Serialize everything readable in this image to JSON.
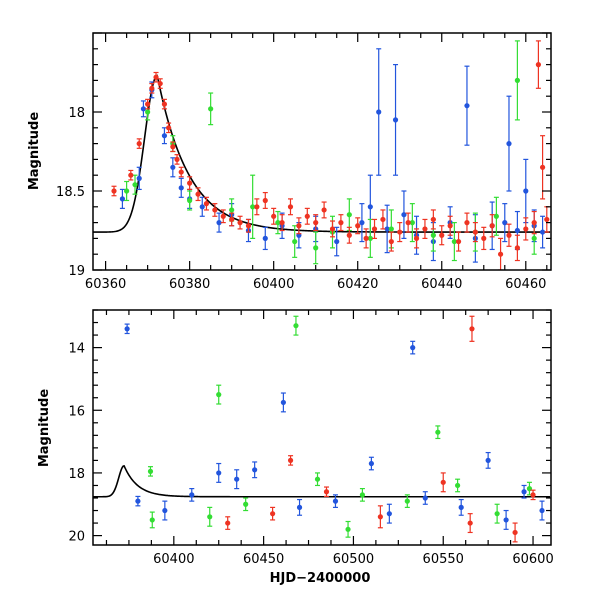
{
  "chart_data": [
    {
      "id": "top",
      "type": "scatter",
      "title": "",
      "xlabel": "",
      "ylabel": "Magnitude",
      "xlim": [
        60357,
        60466
      ],
      "ylim": [
        19.0,
        17.5
      ],
      "y_inverted": true,
      "grid": false,
      "legend": "none",
      "x_ticks": [
        60360,
        60380,
        60400,
        60420,
        60440,
        60460
      ],
      "x_tick_labels": [
        "60360",
        "60380",
        "60400",
        "60420",
        "60440",
        "60460"
      ],
      "y_ticks": [
        18,
        18.5,
        19
      ],
      "y_tick_labels": [
        "18",
        "18.5",
        "19"
      ],
      "model_curve": {
        "color": "#000000",
        "peak_x": 60372.3,
        "peak_mag": 17.77,
        "baseline_mag": 18.76,
        "rise_sigma_days": 3.0,
        "decay_tau_days": 7.5
      },
      "series": [
        {
          "color": "#2255dd",
          "points": [
            [
              60364,
              18.55,
              0.06
            ],
            [
              60368,
              18.42,
              0.07
            ],
            [
              60369,
              17.98,
              0.05
            ],
            [
              60371,
              17.86,
              0.05
            ],
            [
              60374,
              18.15,
              0.05
            ],
            [
              60376,
              18.35,
              0.06
            ],
            [
              60378,
              18.48,
              0.06
            ],
            [
              60380,
              18.55,
              0.06
            ],
            [
              60383,
              18.6,
              0.06
            ],
            [
              60387,
              18.7,
              0.06
            ],
            [
              60390,
              18.65,
              0.07
            ],
            [
              60394,
              18.75,
              0.07
            ],
            [
              60398,
              18.8,
              0.07
            ],
            [
              60402,
              18.72,
              0.08
            ],
            [
              60406,
              18.78,
              0.08
            ],
            [
              60410,
              18.74,
              0.08
            ],
            [
              60415,
              18.82,
              0.09
            ],
            [
              60421,
              18.7,
              0.12
            ],
            [
              60423,
              18.6,
              0.2
            ],
            [
              60425,
              18.0,
              0.4
            ],
            [
              60427,
              18.74,
              0.15
            ],
            [
              60429,
              18.05,
              0.35
            ],
            [
              60431,
              18.65,
              0.15
            ],
            [
              60434,
              18.78,
              0.12
            ],
            [
              60438,
              18.82,
              0.12
            ],
            [
              60442,
              18.7,
              0.1
            ],
            [
              60446,
              17.96,
              0.25
            ],
            [
              60448,
              18.8,
              0.15
            ],
            [
              60452,
              18.72,
              0.15
            ],
            [
              60455,
              18.7,
              0.12
            ],
            [
              60456,
              18.2,
              0.3
            ],
            [
              60458,
              18.75,
              0.12
            ],
            [
              60460,
              18.5,
              0.2
            ],
            [
              60462,
              18.72,
              0.1
            ],
            [
              60464,
              18.76,
              0.1
            ]
          ]
        },
        {
          "color": "#33dd33",
          "points": [
            [
              60365,
              18.5,
              0.06
            ],
            [
              60367,
              18.46,
              0.06
            ],
            [
              60370,
              18.0,
              0.05
            ],
            [
              60376,
              18.2,
              0.05
            ],
            [
              60380,
              18.56,
              0.06
            ],
            [
              60385,
              17.98,
              0.1
            ],
            [
              60390,
              18.62,
              0.07
            ],
            [
              60395,
              18.6,
              0.2
            ],
            [
              60401,
              18.7,
              0.07
            ],
            [
              60405,
              18.82,
              0.1
            ],
            [
              60410,
              18.86,
              0.1
            ],
            [
              60414,
              18.76,
              0.1
            ],
            [
              60418,
              18.65,
              0.1
            ],
            [
              60423,
              18.8,
              0.12
            ],
            [
              60428,
              18.74,
              0.12
            ],
            [
              60433,
              18.7,
              0.12
            ],
            [
              60438,
              18.78,
              0.1
            ],
            [
              60443,
              18.82,
              0.12
            ],
            [
              60448,
              18.76,
              0.12
            ],
            [
              60453,
              18.66,
              0.12
            ],
            [
              60458,
              17.8,
              0.25
            ],
            [
              60462,
              18.8,
              0.1
            ]
          ]
        },
        {
          "color": "#ee3322",
          "points": [
            [
              60362,
              18.5,
              0.03
            ],
            [
              60366,
              18.4,
              0.03
            ],
            [
              60368,
              18.2,
              0.03
            ],
            [
              60370,
              17.95,
              0.03
            ],
            [
              60371,
              17.85,
              0.03
            ],
            [
              60372,
              17.78,
              0.03
            ],
            [
              60373,
              17.82,
              0.03
            ],
            [
              60374,
              17.95,
              0.03
            ],
            [
              60375,
              18.1,
              0.03
            ],
            [
              60376,
              18.22,
              0.03
            ],
            [
              60377,
              18.3,
              0.03
            ],
            [
              60378,
              18.38,
              0.03
            ],
            [
              60380,
              18.45,
              0.04
            ],
            [
              60382,
              18.52,
              0.04
            ],
            [
              60384,
              18.58,
              0.04
            ],
            [
              60386,
              18.62,
              0.04
            ],
            [
              60388,
              18.66,
              0.04
            ],
            [
              60390,
              18.68,
              0.04
            ],
            [
              60392,
              18.7,
              0.04
            ],
            [
              60394,
              18.72,
              0.04
            ],
            [
              60396,
              18.6,
              0.05
            ],
            [
              60398,
              18.56,
              0.05
            ],
            [
              60400,
              18.66,
              0.05
            ],
            [
              60402,
              18.7,
              0.05
            ],
            [
              60404,
              18.6,
              0.05
            ],
            [
              60406,
              18.72,
              0.05
            ],
            [
              60408,
              18.66,
              0.05
            ],
            [
              60410,
              18.7,
              0.05
            ],
            [
              60412,
              18.62,
              0.05
            ],
            [
              60414,
              18.74,
              0.05
            ],
            [
              60416,
              18.7,
              0.05
            ],
            [
              60418,
              18.78,
              0.05
            ],
            [
              60420,
              18.72,
              0.05
            ],
            [
              60422,
              18.8,
              0.06
            ],
            [
              60424,
              18.74,
              0.06
            ],
            [
              60426,
              18.68,
              0.06
            ],
            [
              60428,
              18.82,
              0.06
            ],
            [
              60430,
              18.76,
              0.06
            ],
            [
              60432,
              18.7,
              0.06
            ],
            [
              60434,
              18.8,
              0.06
            ],
            [
              60436,
              18.74,
              0.06
            ],
            [
              60438,
              18.68,
              0.06
            ],
            [
              60440,
              18.78,
              0.06
            ],
            [
              60442,
              18.72,
              0.06
            ],
            [
              60444,
              18.82,
              0.06
            ],
            [
              60446,
              18.7,
              0.06
            ],
            [
              60448,
              18.76,
              0.06
            ],
            [
              60450,
              18.8,
              0.07
            ],
            [
              60452,
              18.72,
              0.07
            ],
            [
              60454,
              18.9,
              0.1
            ],
            [
              60456,
              18.78,
              0.07
            ],
            [
              60458,
              18.86,
              0.08
            ],
            [
              60460,
              18.74,
              0.07
            ],
            [
              60462,
              18.7,
              0.07
            ],
            [
              60463,
              17.7,
              0.15
            ],
            [
              60464,
              18.35,
              0.2
            ],
            [
              60465,
              18.68,
              0.08
            ]
          ]
        }
      ]
    },
    {
      "id": "bottom",
      "type": "scatter",
      "title": "",
      "xlabel": "HJD−2400000",
      "ylabel": "Magnitude",
      "xlim": [
        60355,
        60610
      ],
      "ylim": [
        20.3,
        12.8
      ],
      "y_inverted": true,
      "grid": false,
      "legend": "none",
      "x_ticks": [
        60400,
        60450,
        60500,
        60550,
        60600
      ],
      "x_tick_labels": [
        "60400",
        "60450",
        "60500",
        "60550",
        "60600"
      ],
      "y_ticks": [
        14,
        16,
        18,
        20
      ],
      "y_tick_labels": [
        "14",
        "16",
        "18",
        "20"
      ],
      "model_curve": {
        "color": "#000000",
        "peak_x": 60372.3,
        "peak_mag": 17.77,
        "baseline_mag": 18.76,
        "rise_sigma_days": 3.0,
        "decay_tau_days": 7.5
      },
      "series": [
        {
          "color": "#2255dd",
          "points": [
            [
              60374,
              13.4,
              0.15
            ],
            [
              60461,
              15.75,
              0.3
            ],
            [
              60533,
              14.0,
              0.2
            ],
            [
              60425,
              18.0,
              0.3
            ],
            [
              60435,
              18.2,
              0.3
            ],
            [
              60445,
              17.9,
              0.25
            ],
            [
              60380,
              18.9,
              0.15
            ],
            [
              60395,
              19.2,
              0.3
            ],
            [
              60410,
              18.7,
              0.2
            ],
            [
              60470,
              19.1,
              0.25
            ],
            [
              60490,
              18.9,
              0.2
            ],
            [
              60510,
              17.7,
              0.2
            ],
            [
              60520,
              19.3,
              0.3
            ],
            [
              60540,
              18.8,
              0.2
            ],
            [
              60560,
              19.1,
              0.25
            ],
            [
              60575,
              17.6,
              0.25
            ],
            [
              60585,
              19.5,
              0.3
            ],
            [
              60595,
              18.6,
              0.2
            ],
            [
              60605,
              19.2,
              0.3
            ]
          ]
        },
        {
          "color": "#33dd33",
          "points": [
            [
              60468,
              13.3,
              0.3
            ],
            [
              60425,
              15.5,
              0.3
            ],
            [
              60547,
              16.7,
              0.2
            ],
            [
              60387,
              17.95,
              0.15
            ],
            [
              60388,
              19.5,
              0.25
            ],
            [
              60420,
              19.4,
              0.3
            ],
            [
              60440,
              19.0,
              0.2
            ],
            [
              60480,
              18.2,
              0.2
            ],
            [
              60497,
              19.8,
              0.25
            ],
            [
              60505,
              18.7,
              0.2
            ],
            [
              60530,
              18.9,
              0.2
            ],
            [
              60558,
              18.4,
              0.2
            ],
            [
              60580,
              19.3,
              0.3
            ],
            [
              60598,
              18.5,
              0.2
            ]
          ]
        },
        {
          "color": "#ee3322",
          "points": [
            [
              60566,
              13.4,
              0.4
            ],
            [
              60465,
              17.6,
              0.15
            ],
            [
              60430,
              19.6,
              0.2
            ],
            [
              60455,
              19.3,
              0.2
            ],
            [
              60485,
              18.6,
              0.15
            ],
            [
              60515,
              19.4,
              0.35
            ],
            [
              60550,
              18.3,
              0.3
            ],
            [
              60565,
              19.6,
              0.3
            ],
            [
              60590,
              19.9,
              0.3
            ],
            [
              60600,
              18.7,
              0.15
            ]
          ]
        }
      ]
    }
  ]
}
